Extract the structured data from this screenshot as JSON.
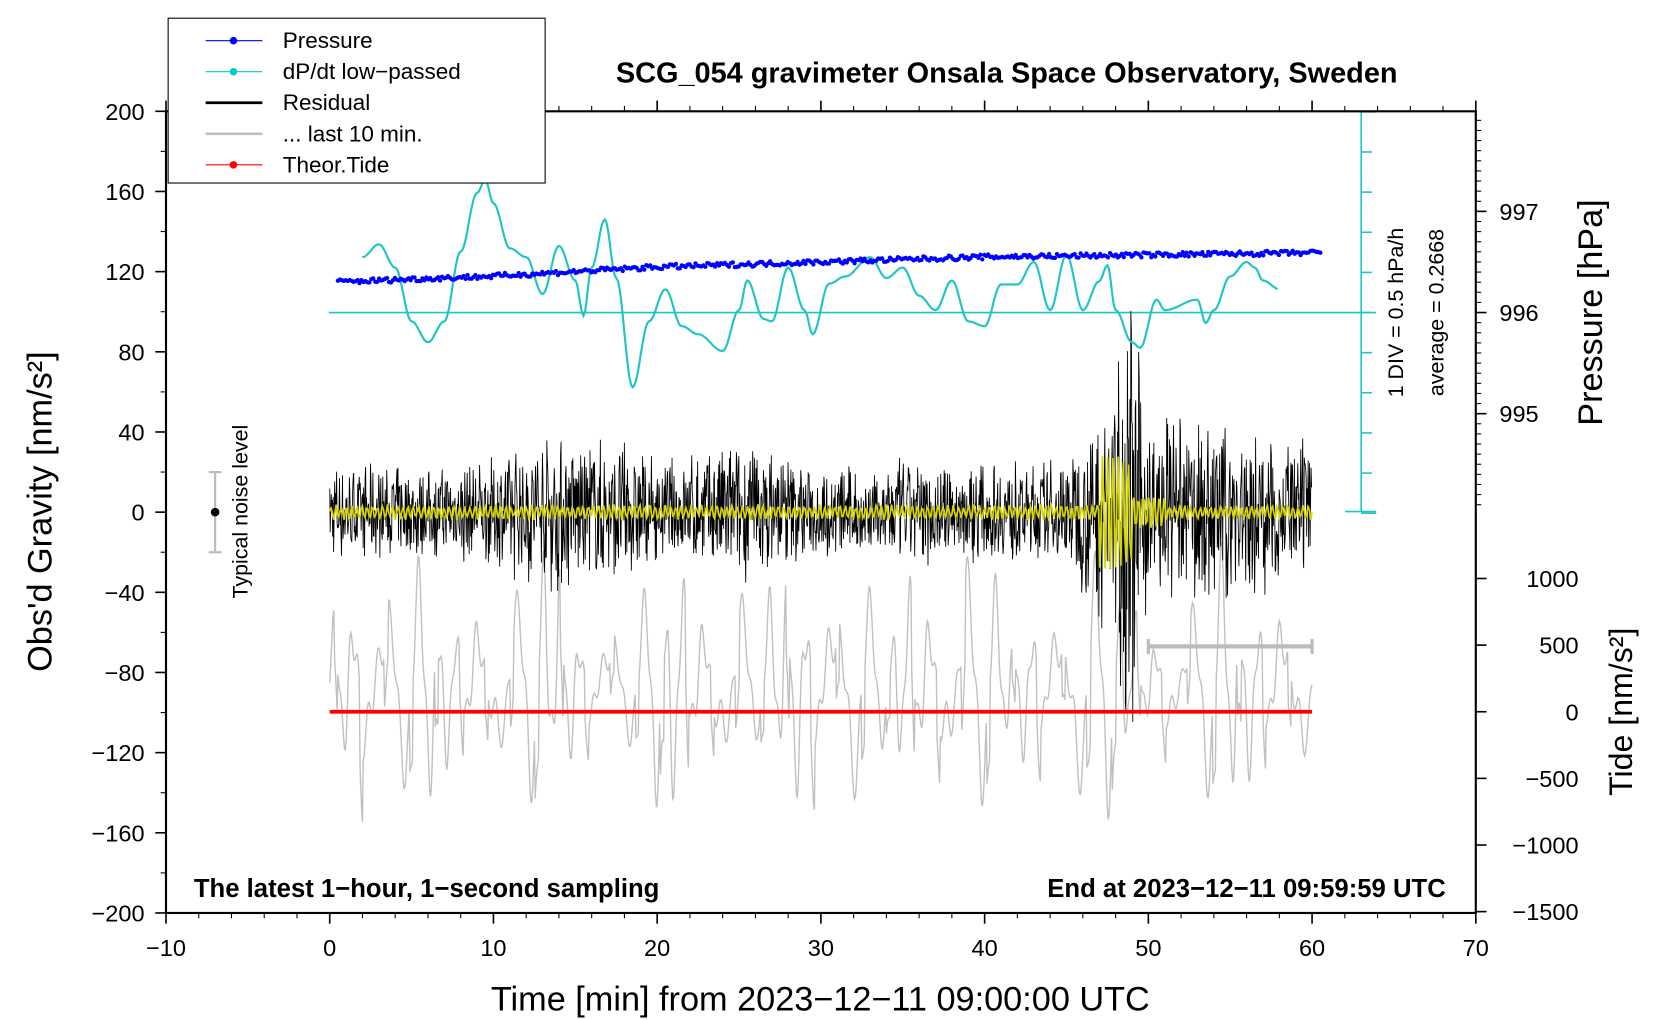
{
  "chart_data": {
    "type": "line",
    "title": "SCG_054 gravimeter Onsala Space Observatory, Sweden",
    "xlabel": "Time [min] from 2023−12−11 09:00:00 UTC",
    "ylabel_left": "Obs'd Gravity [nm/s²]",
    "ylabel_pressure": "Pressure [hPa]",
    "ylabel_tide": "Tide [nm/s²]",
    "xlim": [
      -10,
      70
    ],
    "ylim": [
      -200,
      200
    ],
    "x_ticks": [
      "−10",
      "0",
      "10",
      "20",
      "30",
      "40",
      "50",
      "60",
      "70"
    ],
    "x_tick_values": [
      -10,
      0,
      10,
      20,
      30,
      40,
      50,
      60,
      70
    ],
    "y_ticks": [
      "200",
      "160",
      "120",
      "80",
      "40",
      "0",
      "−40",
      "−80",
      "−120",
      "−160",
      "−200"
    ],
    "y_tick_values": [
      200,
      160,
      120,
      80,
      40,
      0,
      -40,
      -80,
      -120,
      -160,
      -200
    ],
    "pressure_ticks": [
      "997",
      "996",
      "995"
    ],
    "pressure_tick_values": [
      997,
      996,
      995
    ],
    "tide_ticks": [
      "1000",
      "500",
      "0",
      "−500",
      "−1000",
      "−1500"
    ],
    "tide_tick_values": [
      1000,
      500,
      0,
      -500,
      -1000,
      -1500
    ],
    "annotation_left": "The latest 1−hour, 1−second sampling",
    "annotation_right": "End at 2023−12−11 09:59:59 UTC",
    "noise_label": "Typical noise level",
    "dpdt_scale_label": "1 DIV = 0.5 hPa/h",
    "dpdt_average_label": "average = 0.2668",
    "legend": {
      "placement": "top-left",
      "entries": [
        {
          "label": "Pressure",
          "color": "#0000ff"
        },
        {
          "label": "dP/dt low−passed",
          "color": "#00c8c8"
        },
        {
          "label": "Residual",
          "color": "#000000"
        },
        {
          "label": "... last 10 min.",
          "color": "#c0c0c0"
        },
        {
          "label": "Theor.Tide",
          "color": "#ff0000"
        }
      ]
    },
    "series": [
      {
        "name": "Pressure",
        "unit": "hPa",
        "x": [
          0,
          10,
          20,
          30,
          40,
          50,
          60
        ],
        "values": [
          996.3,
          996.36,
          996.45,
          996.5,
          996.55,
          996.57,
          996.59
        ]
      },
      {
        "name": "dP/dt low-passed",
        "unit": "hPa/h",
        "x": [
          2,
          3,
          4,
          5,
          6,
          7,
          8,
          9,
          9.5,
          10,
          11,
          12,
          13,
          14,
          15,
          15.5,
          16,
          16.8,
          17.5,
          18.5,
          19.5,
          20.5,
          21.5,
          22.5,
          24,
          25,
          25.5,
          26.5,
          27,
          28,
          29,
          29.5,
          30.5,
          31.5,
          33,
          34,
          35,
          36,
          37,
          38,
          39,
          40,
          41,
          42,
          43,
          44,
          45,
          46,
          47,
          47.5,
          48,
          49,
          49.5,
          50.5,
          51,
          53,
          53.5,
          54,
          55,
          56,
          56.5,
          57,
          58
        ],
        "values": [
          0.69,
          0.85,
          0.56,
          -0.11,
          -0.37,
          -0.11,
          0.76,
          1.49,
          1.65,
          1.36,
          0.8,
          0.69,
          0.23,
          0.83,
          0.4,
          -0.04,
          0.56,
          1.16,
          0.43,
          -0.93,
          -0.11,
          0.29,
          -0.17,
          -0.27,
          -0.48,
          0.03,
          0.4,
          -0.08,
          -0.11,
          0.56,
          0.03,
          -0.27,
          0.36,
          0.45,
          0.69,
          0.43,
          0.56,
          0.21,
          0.03,
          0.4,
          -0.11,
          -0.17,
          0.35,
          0.35,
          0.63,
          0.03,
          0.72,
          0.03,
          0.39,
          0.59,
          0.03,
          -0.37,
          -0.44,
          0.16,
          0.03,
          0.16,
          -0.13,
          0.03,
          0.45,
          0.63,
          0.56,
          0.4,
          0.29
        ]
      },
      {
        "name": "Residual",
        "unit": "nm/s2",
        "x_range": [
          0,
          60
        ],
        "amplitude_envelope": {
          "x": [
            0,
            5,
            10,
            13,
            15,
            18,
            20,
            25,
            30,
            35,
            40,
            45,
            47,
            48,
            49,
            50,
            55,
            60
          ],
          "values": [
            20,
            18,
            22,
            35,
            30,
            30,
            20,
            30,
            18,
            22,
            20,
            22,
            45,
            70,
            90,
            40,
            35,
            30
          ]
        }
      },
      {
        "name": "... last 10 min.",
        "unit": "nm/s2",
        "x_range": [
          0,
          60
        ],
        "offset": -100,
        "amplitude": 60
      },
      {
        "name": "Theor.Tide",
        "unit": "nm/s2",
        "x": [
          0,
          60
        ],
        "values": [
          0,
          0
        ]
      }
    ],
    "noise_level": {
      "x": -7,
      "center": 0,
      "half_range": 20
    },
    "last10_bar": {
      "x": [
        50,
        60
      ],
      "y": -67
    },
    "colors": {
      "pressure": "#0000ff",
      "dpdt": "#1fc4c4",
      "residual": "#000000",
      "filtered": "#d4d400",
      "last10": "#c0c0c0",
      "tide": "#ff0000"
    }
  }
}
